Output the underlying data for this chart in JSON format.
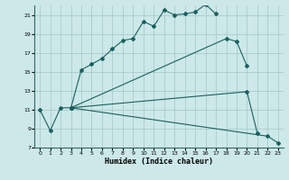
{
  "xlabel": "Humidex (Indice chaleur)",
  "bg_color": "#cce8e8",
  "grid_color": "#aacccc",
  "line_color": "#1a6060",
  "ylim": [
    7,
    22
  ],
  "xlim": [
    -0.5,
    23.5
  ],
  "yticks": [
    7,
    9,
    11,
    13,
    15,
    17,
    19,
    21
  ],
  "xticks": [
    0,
    1,
    2,
    3,
    4,
    5,
    6,
    7,
    8,
    9,
    10,
    11,
    12,
    13,
    14,
    15,
    16,
    17,
    18,
    19,
    20,
    21,
    22,
    23
  ],
  "line1_x": [
    0,
    1,
    2,
    3,
    4,
    5,
    6,
    7,
    8,
    9,
    10,
    11,
    12,
    13,
    14,
    15,
    16,
    17
  ],
  "line1_y": [
    11.0,
    8.8,
    11.2,
    11.2,
    15.2,
    15.8,
    16.4,
    17.4,
    18.3,
    18.5,
    20.3,
    19.8,
    21.5,
    21.0,
    21.1,
    21.3,
    22.1,
    21.1
  ],
  "line2_x": [
    3,
    18,
    19,
    20,
    21,
    22,
    23
  ],
  "line2_y": [
    11.2,
    18.5,
    18.2,
    15.6,
    null,
    null,
    null
  ],
  "line3_x": [
    3,
    20,
    21
  ],
  "line3_y": [
    11.2,
    12.9,
    8.5
  ],
  "line4_x": [
    3,
    22,
    23
  ],
  "line4_y": [
    11.2,
    8.2,
    7.5
  ]
}
